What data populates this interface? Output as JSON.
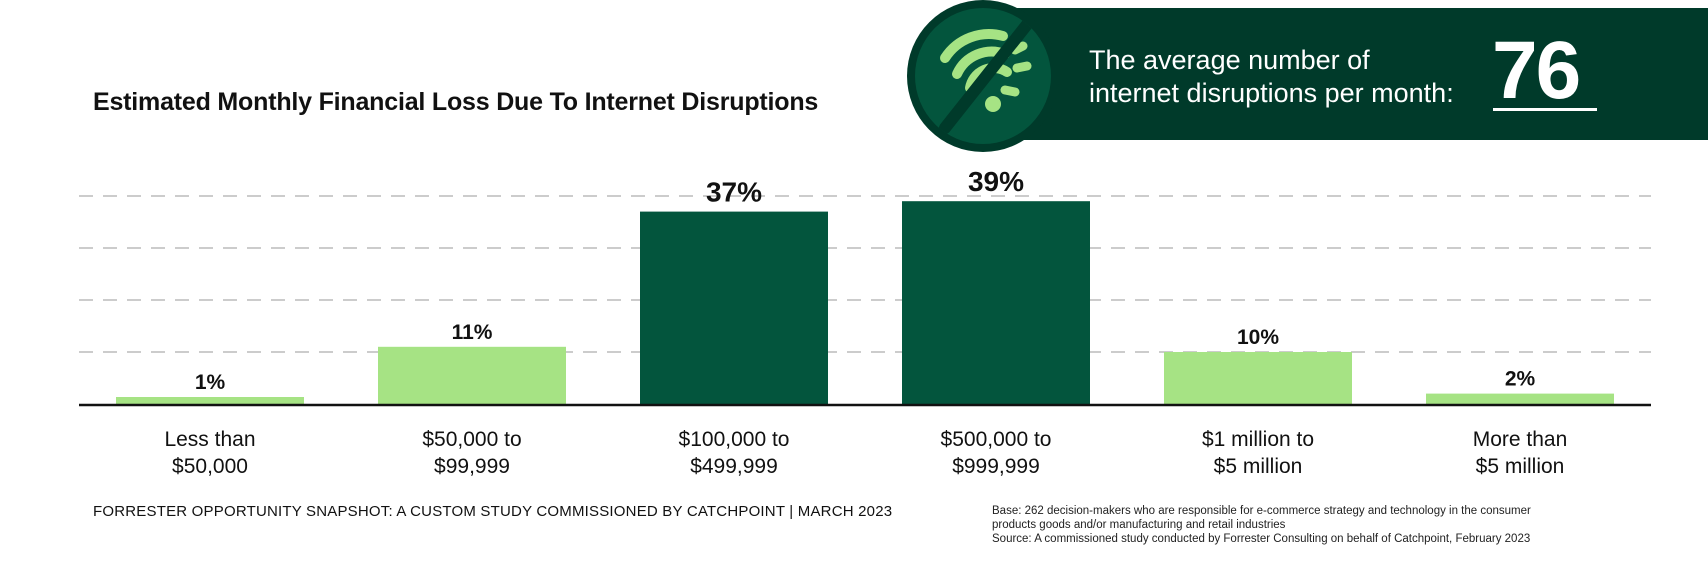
{
  "chart_data": {
    "type": "bar",
    "title": "Estimated Monthly Financial Loss Due To Internet Disruptions",
    "categories": [
      [
        "Less than",
        "$50,000"
      ],
      [
        "$50,000 to",
        "$99,999"
      ],
      [
        "$100,000 to",
        "$499,999"
      ],
      [
        "$500,000 to",
        "$999,999"
      ],
      [
        "$1 million to",
        "$5 million"
      ],
      [
        "More than",
        "$5 million"
      ]
    ],
    "values": [
      1,
      11,
      37,
      39,
      10,
      2
    ],
    "value_labels": [
      "1%",
      "11%",
      "37%",
      "39%",
      "10%",
      "2%"
    ],
    "highlight": [
      false,
      false,
      true,
      true,
      false,
      false
    ],
    "ylim": [
      0,
      40
    ],
    "grid": "dashed horizontal",
    "colors": {
      "default": "#a6e384",
      "highlight": "#03553d",
      "grid": "#cccccc",
      "axis": "#111111"
    }
  },
  "callout": {
    "text_line1": "The average number of",
    "text_line2": "internet disruptions per month:",
    "number": "76",
    "icon": "no-wifi-icon",
    "colors": {
      "background": "#003a2a",
      "circle": "#03553d",
      "icon": "#a6e384"
    }
  },
  "footer": {
    "left": "FORRESTER OPPORTUNITY SNAPSHOT: A CUSTOM STUDY COMMISSIONED BY CATCHPOINT | MARCH 2023",
    "base_line1": "Base: 262 decision-makers who are responsible for e-commerce strategy and technology in the consumer",
    "base_line2": "products goods and/or manufacturing and retail industries",
    "source": "Source: A commissioned study conducted by Forrester Consulting on behalf of Catchpoint, February 2023"
  }
}
